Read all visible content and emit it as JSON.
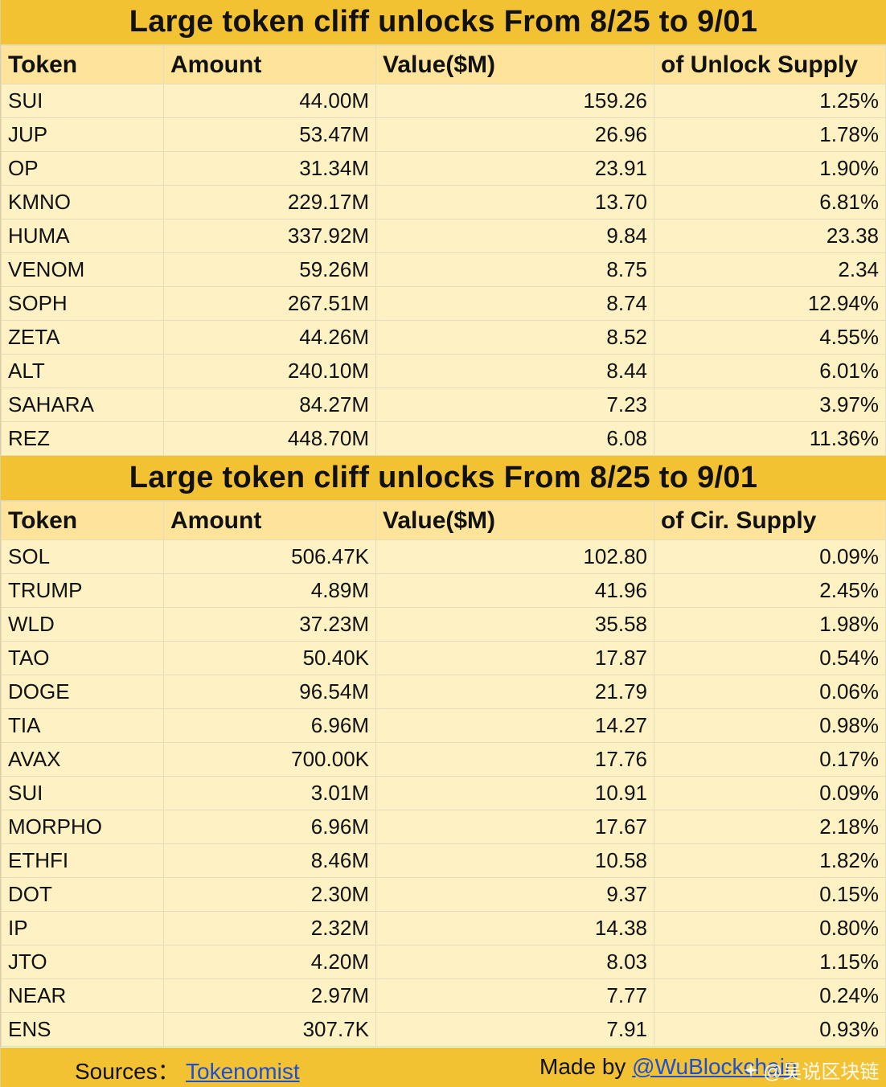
{
  "tables": [
    {
      "title": "Large token cliff unlocks From  8/25 to 9/01",
      "headers": [
        "Token",
        "Amount",
        "Value($M)",
        "of Unlock Supply"
      ],
      "rows": [
        [
          "SUI",
          "44.00M",
          "159.26",
          "1.25%"
        ],
        [
          "JUP",
          "53.47M",
          "26.96",
          "1.78%"
        ],
        [
          "OP",
          "31.34M",
          "23.91",
          "1.90%"
        ],
        [
          "KMNO",
          "229.17M",
          "13.70",
          "6.81%"
        ],
        [
          "HUMA",
          "337.92M",
          "9.84",
          "23.38"
        ],
        [
          "VENOM",
          "59.26M",
          "8.75",
          "2.34"
        ],
        [
          "SOPH",
          "267.51M",
          "8.74",
          "12.94%"
        ],
        [
          "ZETA",
          "44.26M",
          "8.52",
          "4.55%"
        ],
        [
          "ALT",
          "240.10M",
          "8.44",
          "6.01%"
        ],
        [
          "SAHARA",
          "84.27M",
          "7.23",
          "3.97%"
        ],
        [
          "REZ",
          "448.70M",
          "6.08",
          "11.36%"
        ]
      ]
    },
    {
      "title": "Large token cliff unlocks From  8/25 to 9/01",
      "headers": [
        "Token",
        "Amount",
        "Value($M)",
        "of Cir. Supply"
      ],
      "rows": [
        [
          "SOL",
          "506.47K",
          "102.80",
          "0.09%"
        ],
        [
          "TRUMP",
          "4.89M",
          "41.96",
          "2.45%"
        ],
        [
          "WLD",
          "37.23M",
          "35.58",
          "1.98%"
        ],
        [
          "TAO",
          "50.40K",
          "17.87",
          "0.54%"
        ],
        [
          "DOGE",
          "96.54M",
          "21.79",
          "0.06%"
        ],
        [
          "TIA",
          "6.96M",
          "14.27",
          "0.98%"
        ],
        [
          "AVAX",
          "700.00K",
          "17.76",
          "0.17%"
        ],
        [
          "SUI",
          "3.01M",
          "10.91",
          "0.09%"
        ],
        [
          "MORPHO",
          "6.96M",
          "17.67",
          "2.18%"
        ],
        [
          "ETHFI",
          "8.46M",
          "10.58",
          "1.82%"
        ],
        [
          "DOT",
          "2.30M",
          "9.37",
          "0.15%"
        ],
        [
          "IP",
          "2.32M",
          "14.38",
          "0.80%"
        ],
        [
          "JTO",
          "4.20M",
          "8.03",
          "1.15%"
        ],
        [
          "NEAR",
          "2.97M",
          "7.77",
          "0.24%"
        ],
        [
          "ENS",
          "307.7K",
          "7.91",
          "0.93%"
        ]
      ]
    }
  ],
  "footer": {
    "sources_label": "Sources：",
    "sources_link": "Tokenomist",
    "made_by_label": "Made by ",
    "made_by_link": "@WuBlockchain",
    "watermark": "@吴说区块链",
    "watermark_icon": "sparkle-icon"
  },
  "colors": {
    "title_bg": "#f2c233",
    "header_bg": "#fde49a",
    "cell_bg": "#fef1c3",
    "link": "#1a4fd6"
  }
}
